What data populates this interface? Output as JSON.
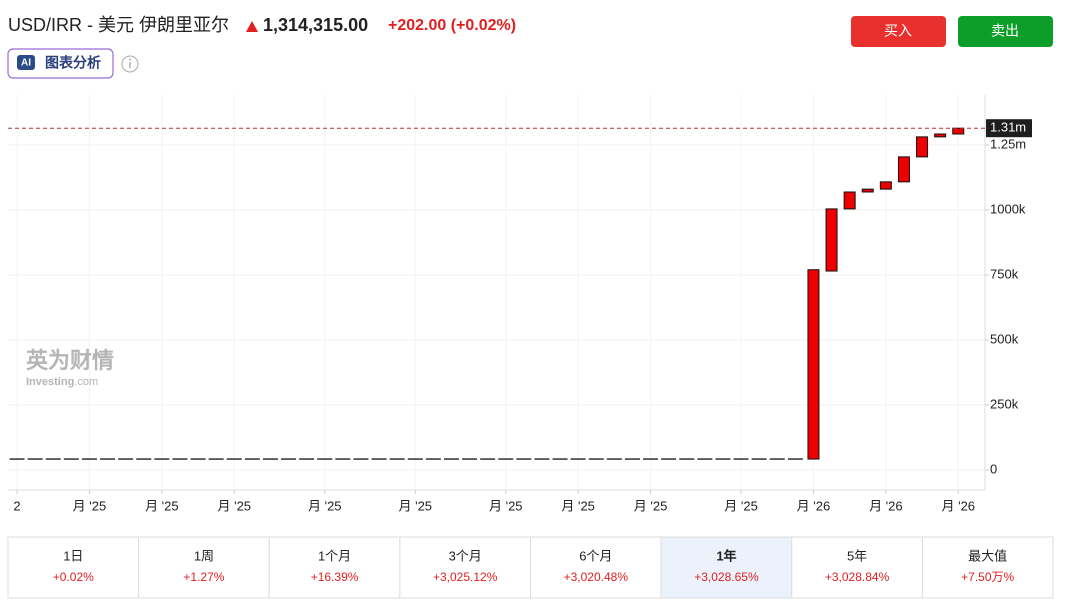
{
  "header": {
    "title": "USD/IRR - 美元 伊朗里亚尔",
    "price": "1,314,315.00",
    "change": "+202.00 (+0.02%)",
    "ai_badge": "AI",
    "ai_button": "图表分析"
  },
  "buttons": {
    "buy": "买入",
    "sell": "卖出"
  },
  "watermark": {
    "cn": "英为财情",
    "en": "Investing",
    "en_suffix": ".com"
  },
  "chart_data": {
    "type": "candlestick",
    "categories": [
      "2",
      null,
      null,
      null,
      "月 '25",
      null,
      null,
      null,
      "月 '25",
      null,
      null,
      null,
      "月 '25",
      null,
      null,
      null,
      null,
      "月 '25",
      null,
      null,
      null,
      null,
      "月 '25",
      null,
      null,
      null,
      null,
      "月 '25",
      null,
      null,
      null,
      "月 '25",
      null,
      null,
      null,
      "月 '25",
      null,
      null,
      null,
      null,
      "月 '25",
      null,
      null,
      null,
      "月 '26",
      null,
      null,
      null,
      "月 '26",
      null,
      null,
      null,
      "月 '26"
    ],
    "open": [
      42000,
      42000,
      42000,
      42000,
      42000,
      42000,
      42000,
      42000,
      42000,
      42000,
      42000,
      42000,
      42000,
      42000,
      42000,
      42000,
      42000,
      42000,
      42000,
      42000,
      42000,
      42000,
      42000,
      42000,
      42000,
      42000,
      42000,
      42000,
      42000,
      42000,
      42000,
      42000,
      42000,
      42000,
      42000,
      42000,
      42000,
      42000,
      42000,
      42000,
      42000,
      42000,
      42000,
      42000,
      42000,
      765000,
      1004000,
      1069000,
      1080000,
      1108000,
      1204000,
      1281000,
      1292000
    ],
    "close": [
      42000,
      42000,
      42000,
      42000,
      42000,
      42000,
      42000,
      42000,
      42000,
      42000,
      42000,
      42000,
      42000,
      42000,
      42000,
      42000,
      42000,
      42000,
      42000,
      42000,
      42000,
      42000,
      42000,
      42000,
      42000,
      42000,
      42000,
      42000,
      42000,
      42000,
      42000,
      42000,
      42000,
      42000,
      42000,
      42000,
      42000,
      42000,
      42000,
      42000,
      42000,
      42000,
      42000,
      42000,
      770000,
      1004000,
      1069000,
      1080000,
      1108000,
      1204000,
      1281000,
      1292000,
      1314315
    ],
    "color": "#ee0000",
    "ylim": [
      -77000,
      1442000
    ],
    "yticks": [
      0,
      {
        "value": 250000,
        "label": "250k"
      },
      {
        "value": 500000,
        "label": "500k"
      },
      {
        "value": 750000,
        "label": "750k"
      },
      {
        "value": 1000000,
        "label": "1000k"
      },
      {
        "value": 1250000,
        "label": "1.25m"
      }
    ],
    "last_value": {
      "value": 1314315,
      "label": "1.31m"
    },
    "grid": true
  },
  "periods": [
    {
      "label": "1日",
      "change": "+0.02%"
    },
    {
      "label": "1周",
      "change": "+1.27%"
    },
    {
      "label": "1个月",
      "change": "+16.39%"
    },
    {
      "label": "3个月",
      "change": "+3,025.12%"
    },
    {
      "label": "6个月",
      "change": "+3,020.48%"
    },
    {
      "label": "1年",
      "change": "+3,028.65%"
    },
    {
      "label": "5年",
      "change": "+3,028.84%"
    },
    {
      "label": "最大值",
      "change": "+7.50万%"
    }
  ],
  "selected_period": 5
}
